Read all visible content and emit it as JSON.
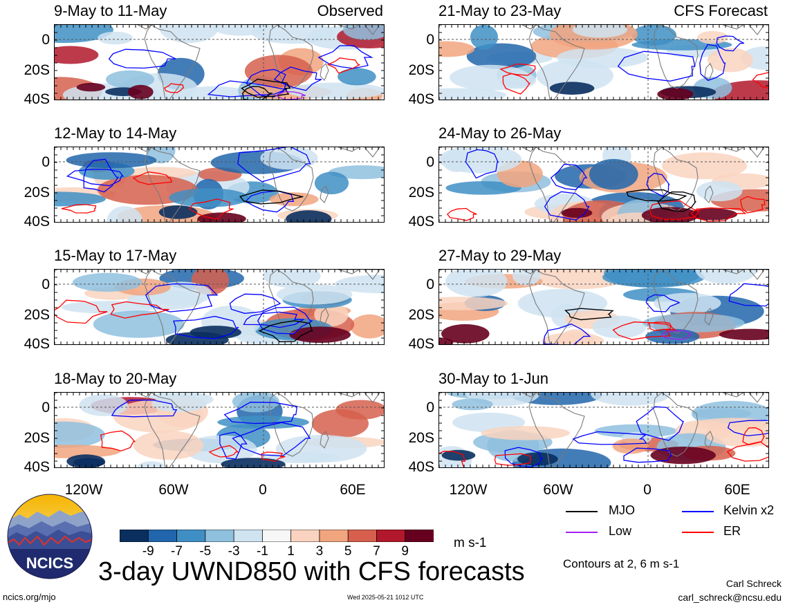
{
  "panels": [
    {
      "title": "9-May to 11-May",
      "corner": "Observed"
    },
    {
      "title": "12-May to 14-May",
      "corner": ""
    },
    {
      "title": "15-May to 17-May",
      "corner": ""
    },
    {
      "title": "18-May to 20-May",
      "corner": ""
    },
    {
      "title": "21-May to 23-May",
      "corner": "CFS Forecast"
    },
    {
      "title": "24-May to 26-May",
      "corner": ""
    },
    {
      "title": "27-May to 29-May",
      "corner": ""
    },
    {
      "title": "30-May to 1-Jun",
      "corner": ""
    }
  ],
  "axes": {
    "lat_ticks": [
      "0",
      "20S",
      "40S"
    ],
    "lon_ticks": [
      "120W",
      "60W",
      "0",
      "60E"
    ]
  },
  "colorbar": {
    "labels": [
      "-9",
      "-7",
      "-5",
      "-3",
      "-1",
      "1",
      "3",
      "5",
      "7",
      "9"
    ],
    "colors": [
      "#0a2f5f",
      "#2166ac",
      "#3f8fc4",
      "#8fc0de",
      "#cfe3f1",
      "#f7f7f7",
      "#f9d3bf",
      "#f1a57f",
      "#d6604d",
      "#b2182b",
      "#67001f"
    ],
    "units": "m s-1"
  },
  "legend": [
    {
      "label": "MJO",
      "color": "#000000"
    },
    {
      "label": "Low",
      "color": "#a020f0"
    },
    {
      "label": "Kelvin x2",
      "color": "#0000ff"
    },
    {
      "label": "ER",
      "color": "#ff0000"
    }
  ],
  "contours_note": "Contours at 2, 6 m s-1",
  "title": "3-day UWND850 with CFS forecasts",
  "footer": {
    "site": "ncics.org/mjo",
    "timestamp": "Wed 2025-05-21 1012 UTC",
    "author": "Carl Schreck",
    "email": "carl_schreck@ncsu.edu"
  },
  "logo_text": "NCICS",
  "chart_data": {
    "type": "heatmap",
    "variable": "UWND850 anomaly",
    "units": "m s-1",
    "x_range": [
      "150W",
      "85E"
    ],
    "y_range": [
      "10N",
      "40S"
    ],
    "panels": [
      {
        "period": "9-May to 11-May",
        "source": "Observed"
      },
      {
        "period": "12-May to 14-May",
        "source": "Observed"
      },
      {
        "period": "15-May to 17-May",
        "source": "Observed"
      },
      {
        "period": "18-May to 20-May",
        "source": "Observed"
      },
      {
        "period": "21-May to 23-May",
        "source": "CFS Forecast"
      },
      {
        "period": "24-May to 26-May",
        "source": "CFS Forecast"
      },
      {
        "period": "27-May to 29-May",
        "source": "CFS Forecast"
      },
      {
        "period": "30-May to 1-Jun",
        "source": "CFS Forecast"
      }
    ],
    "contour_levels": [
      2,
      6
    ]
  }
}
